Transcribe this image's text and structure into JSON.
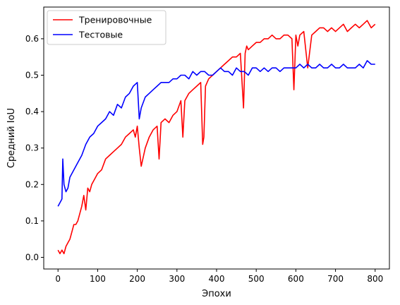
{
  "chart_data": {
    "type": "line",
    "xlabel": "Эпохи",
    "ylabel": "Средний IoU",
    "xlim": [
      -36,
      836
    ],
    "ylim": [
      -0.032,
      0.687
    ],
    "xticks": [
      0,
      100,
      200,
      300,
      400,
      500,
      600,
      700,
      800
    ],
    "yticks": [
      0.0,
      0.1,
      0.2,
      0.3,
      0.4,
      0.5,
      0.6
    ],
    "ytick_labels": [
      "0.0",
      "0.1",
      "0.2",
      "0.3",
      "0.4",
      "0.5",
      "0.6"
    ],
    "grid": false,
    "legend_position": "upper-left",
    "series": [
      {
        "name": "Тренировочные",
        "color": "#ff0000",
        "x": [
          0,
          5,
          10,
          15,
          20,
          25,
          30,
          35,
          40,
          45,
          50,
          55,
          60,
          65,
          70,
          75,
          80,
          85,
          90,
          95,
          100,
          110,
          120,
          130,
          140,
          150,
          160,
          170,
          180,
          190,
          195,
          200,
          205,
          210,
          220,
          230,
          240,
          250,
          255,
          260,
          270,
          280,
          290,
          300,
          310,
          315,
          320,
          330,
          340,
          350,
          360,
          365,
          368,
          372,
          380,
          390,
          400,
          410,
          420,
          430,
          440,
          450,
          460,
          468,
          472,
          476,
          480,
          490,
          500,
          510,
          520,
          530,
          540,
          550,
          560,
          570,
          580,
          590,
          595,
          600,
          605,
          610,
          620,
          630,
          640,
          650,
          660,
          670,
          680,
          690,
          700,
          710,
          720,
          730,
          740,
          750,
          760,
          770,
          780,
          790,
          800
        ],
        "y": [
          0.02,
          0.01,
          0.02,
          0.01,
          0.03,
          0.04,
          0.05,
          0.07,
          0.09,
          0.09,
          0.1,
          0.12,
          0.14,
          0.17,
          0.13,
          0.19,
          0.18,
          0.2,
          0.21,
          0.22,
          0.23,
          0.24,
          0.27,
          0.28,
          0.29,
          0.3,
          0.31,
          0.33,
          0.34,
          0.35,
          0.33,
          0.36,
          0.3,
          0.25,
          0.3,
          0.33,
          0.35,
          0.36,
          0.27,
          0.37,
          0.38,
          0.37,
          0.39,
          0.4,
          0.43,
          0.33,
          0.43,
          0.45,
          0.46,
          0.47,
          0.48,
          0.31,
          0.33,
          0.47,
          0.49,
          0.5,
          0.51,
          0.52,
          0.53,
          0.54,
          0.55,
          0.55,
          0.56,
          0.41,
          0.56,
          0.58,
          0.57,
          0.58,
          0.59,
          0.59,
          0.6,
          0.6,
          0.61,
          0.6,
          0.6,
          0.61,
          0.61,
          0.6,
          0.46,
          0.61,
          0.58,
          0.61,
          0.62,
          0.52,
          0.61,
          0.62,
          0.63,
          0.63,
          0.62,
          0.63,
          0.62,
          0.63,
          0.64,
          0.62,
          0.63,
          0.64,
          0.63,
          0.64,
          0.65,
          0.63,
          0.64
        ]
      },
      {
        "name": "Тестовые",
        "color": "#0000ff",
        "x": [
          0,
          5,
          10,
          12,
          15,
          20,
          25,
          30,
          40,
          50,
          60,
          70,
          80,
          90,
          100,
          110,
          120,
          130,
          140,
          150,
          160,
          170,
          180,
          190,
          200,
          205,
          210,
          220,
          230,
          240,
          250,
          260,
          270,
          280,
          290,
          300,
          310,
          320,
          330,
          340,
          350,
          360,
          370,
          380,
          390,
          400,
          410,
          420,
          430,
          440,
          450,
          460,
          470,
          480,
          490,
          500,
          510,
          520,
          530,
          540,
          550,
          560,
          570,
          580,
          590,
          600,
          610,
          620,
          630,
          640,
          650,
          660,
          670,
          680,
          690,
          700,
          710,
          720,
          730,
          740,
          750,
          760,
          770,
          780,
          790,
          800
        ],
        "y": [
          0.14,
          0.15,
          0.16,
          0.27,
          0.2,
          0.18,
          0.19,
          0.22,
          0.24,
          0.26,
          0.28,
          0.31,
          0.33,
          0.34,
          0.36,
          0.37,
          0.38,
          0.4,
          0.39,
          0.42,
          0.41,
          0.44,
          0.45,
          0.47,
          0.48,
          0.38,
          0.41,
          0.44,
          0.45,
          0.46,
          0.47,
          0.48,
          0.48,
          0.48,
          0.49,
          0.49,
          0.5,
          0.5,
          0.49,
          0.51,
          0.5,
          0.51,
          0.51,
          0.5,
          0.5,
          0.51,
          0.52,
          0.51,
          0.51,
          0.5,
          0.52,
          0.51,
          0.51,
          0.5,
          0.52,
          0.52,
          0.51,
          0.52,
          0.51,
          0.52,
          0.52,
          0.51,
          0.52,
          0.52,
          0.52,
          0.52,
          0.53,
          0.52,
          0.53,
          0.52,
          0.52,
          0.53,
          0.52,
          0.52,
          0.53,
          0.52,
          0.52,
          0.53,
          0.52,
          0.52,
          0.52,
          0.53,
          0.52,
          0.54,
          0.53,
          0.53
        ]
      }
    ]
  }
}
